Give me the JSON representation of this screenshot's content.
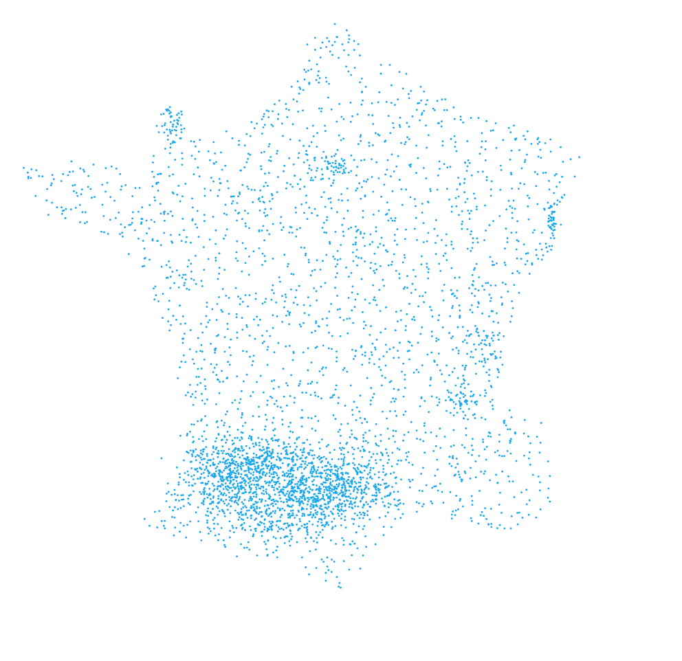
{
  "map": {
    "type": "point-density-map",
    "region": "France",
    "point_color": "#1aa7ec",
    "background_color": "#ffffff",
    "dense_region_weight": 0.55
  }
}
